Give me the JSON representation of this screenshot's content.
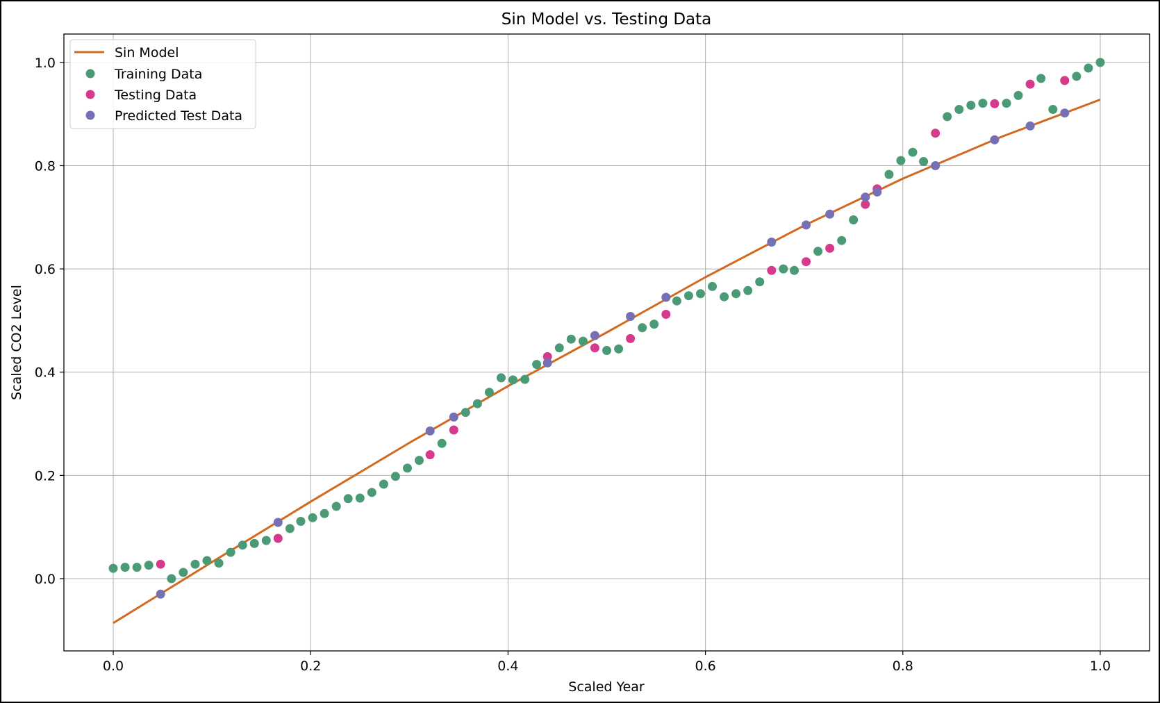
{
  "chart_data": {
    "type": "scatter",
    "title": "Sin Model vs. Testing Data",
    "xlabel": "Scaled Year",
    "ylabel": "Scaled CO2 Level",
    "xlim": [
      -0.05,
      1.05
    ],
    "ylim": [
      -0.14,
      1.055
    ],
    "xticks": [
      "0.0",
      "0.2",
      "0.4",
      "0.6",
      "0.8",
      "1.0"
    ],
    "yticks": [
      "0.0",
      "0.2",
      "0.4",
      "0.6",
      "0.8",
      "1.0"
    ],
    "grid": true,
    "legend_position": "top-left",
    "series": [
      {
        "name": "Sin Model",
        "kind": "line",
        "color": "#d2691e",
        "x": [
          0.0,
          0.1,
          0.2,
          0.3,
          0.4,
          0.5,
          0.6,
          0.7,
          0.8,
          0.9,
          1.0
        ],
        "y": [
          -0.086,
          0.032,
          0.149,
          0.263,
          0.373,
          0.477,
          0.584,
          0.684,
          0.775,
          0.856,
          0.928
        ]
      },
      {
        "name": "Training Data",
        "kind": "scatter",
        "color": "#4a9a76",
        "x": [
          0.0,
          0.012,
          0.024,
          0.036,
          0.059,
          0.071,
          0.083,
          0.095,
          0.107,
          0.119,
          0.131,
          0.143,
          0.155,
          0.179,
          0.19,
          0.202,
          0.214,
          0.226,
          0.238,
          0.25,
          0.262,
          0.274,
          0.286,
          0.298,
          0.31,
          0.333,
          0.357,
          0.369,
          0.381,
          0.393,
          0.405,
          0.417,
          0.429,
          0.452,
          0.464,
          0.476,
          0.5,
          0.512,
          0.536,
          0.548,
          0.571,
          0.583,
          0.595,
          0.607,
          0.619,
          0.631,
          0.643,
          0.655,
          0.679,
          0.69,
          0.714,
          0.738,
          0.75,
          0.786,
          0.798,
          0.81,
          0.821,
          0.845,
          0.857,
          0.869,
          0.881,
          0.905,
          0.917,
          0.94,
          0.952,
          0.976,
          0.988,
          1.0
        ],
        "y": [
          0.02,
          0.022,
          0.022,
          0.026,
          0.0,
          0.012,
          0.028,
          0.035,
          0.03,
          0.051,
          0.065,
          0.068,
          0.074,
          0.097,
          0.111,
          0.118,
          0.126,
          0.14,
          0.155,
          0.156,
          0.167,
          0.183,
          0.198,
          0.214,
          0.229,
          0.262,
          0.322,
          0.339,
          0.361,
          0.389,
          0.385,
          0.386,
          0.415,
          0.447,
          0.464,
          0.46,
          0.442,
          0.445,
          0.486,
          0.493,
          0.538,
          0.548,
          0.552,
          0.566,
          0.546,
          0.552,
          0.558,
          0.575,
          0.6,
          0.597,
          0.634,
          0.655,
          0.695,
          0.783,
          0.81,
          0.826,
          0.808,
          0.895,
          0.909,
          0.917,
          0.921,
          0.921,
          0.936,
          0.969,
          0.909,
          0.973,
          0.989,
          1.0
        ]
      },
      {
        "name": "Testing Data",
        "kind": "scatter",
        "color": "#d63a8c",
        "x": [
          0.048,
          0.167,
          0.321,
          0.345,
          0.44,
          0.488,
          0.524,
          0.56,
          0.667,
          0.702,
          0.726,
          0.762,
          0.774,
          0.833,
          0.893,
          0.929,
          0.964
        ],
        "y": [
          0.028,
          0.078,
          0.24,
          0.288,
          0.43,
          0.447,
          0.465,
          0.512,
          0.597,
          0.614,
          0.64,
          0.725,
          0.755,
          0.863,
          0.92,
          0.958,
          0.965
        ]
      },
      {
        "name": "Predicted Test Data",
        "kind": "scatter",
        "color": "#7570b3",
        "x": [
          0.048,
          0.167,
          0.321,
          0.345,
          0.44,
          0.488,
          0.524,
          0.56,
          0.667,
          0.702,
          0.726,
          0.762,
          0.774,
          0.833,
          0.893,
          0.929,
          0.964
        ],
        "y": [
          -0.03,
          0.109,
          0.286,
          0.313,
          0.418,
          0.471,
          0.508,
          0.545,
          0.652,
          0.685,
          0.706,
          0.739,
          0.749,
          0.8,
          0.85,
          0.877,
          0.902
        ]
      }
    ]
  }
}
